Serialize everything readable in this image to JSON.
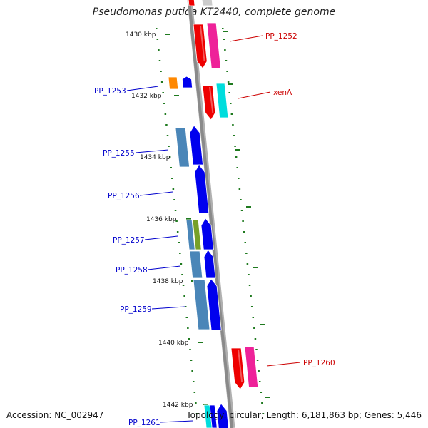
{
  "title": "Pseudomonas putida KT2440, complete genome",
  "footer": {
    "accession": "Accession: NC_002947",
    "info": "Topology: circular; Length: 6,181,863 bp; Genes: 5,446"
  },
  "colors": {
    "backbone": "#8a8a8a",
    "tick": "#1f7a1f",
    "forward_label": "#cc0000",
    "reverse_label": "#0000cc",
    "red": "#ee0000",
    "magenta": "#ee2299",
    "cyan": "#00dddd",
    "blue": "#0000ee",
    "steel": "#4a86b8",
    "olive": "#77a028",
    "orange": "#ff8800"
  },
  "scale": {
    "unit": "kbp",
    "tick_labels": [
      "1430 kbp",
      "1432 kbp",
      "1434 kbp",
      "1436 kbp",
      "1438 kbp",
      "1440 kbp",
      "1442 kbp"
    ]
  },
  "gene_labels": {
    "forward": [
      "PP_1252",
      "xenA",
      "PP_1260"
    ],
    "reverse": [
      "PP_1253",
      "PP_1255",
      "PP_1256",
      "PP_1257",
      "PP_1258",
      "PP_1259",
      "PP_1261"
    ]
  },
  "features": {
    "reverse_color_names": [
      "orange",
      "blue",
      "steel",
      "blue",
      "blue",
      "steel",
      "olive",
      "blue",
      "steel",
      "blue",
      "steel",
      "blue",
      "blue",
      "steel",
      "blue"
    ],
    "forward_color_names": [
      "red",
      "magenta",
      "red",
      "cyan",
      "red",
      "magenta"
    ]
  }
}
